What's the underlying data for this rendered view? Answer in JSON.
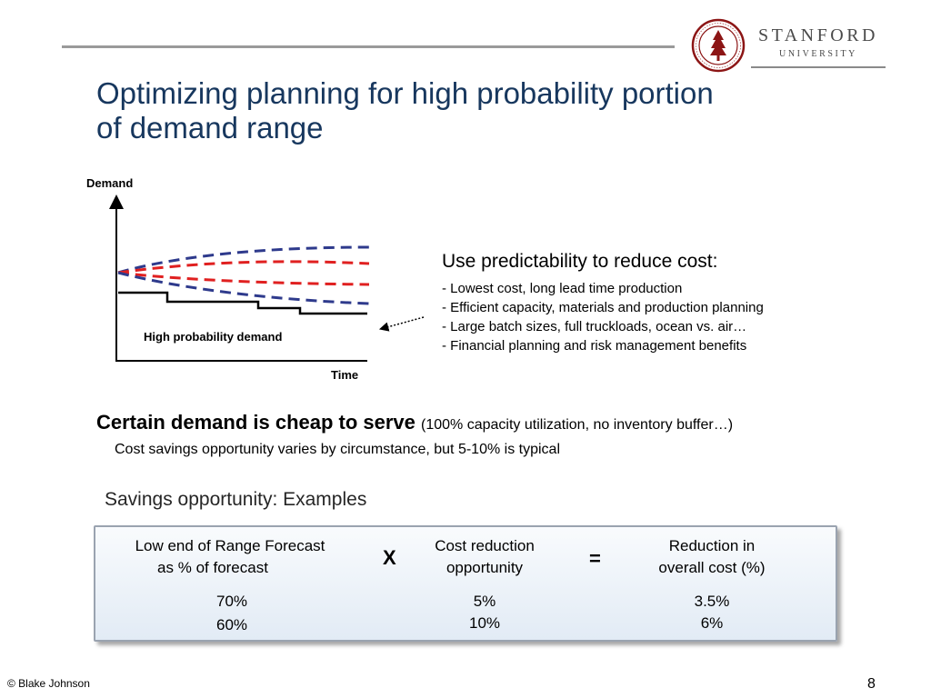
{
  "header": {
    "brand_name": "STANFORD",
    "brand_sub": "UNIVERSITY",
    "accent_color": "#8c1515",
    "title_color": "#17375e"
  },
  "title_line1": "Optimizing planning for high probability portion",
  "title_line2": "of demand range",
  "diagram": {
    "y_label": "Demand",
    "x_label": "Time",
    "band_label": "High probability demand"
  },
  "use": {
    "heading": "Use predictability to reduce cost:",
    "items": [
      "- Lowest cost, long lead time production",
      "- Efficient capacity, materials and production planning",
      "- Large batch sizes, full truckloads, ocean vs. air…",
      "- Financial planning and risk management benefits"
    ]
  },
  "certain": {
    "strong": "Certain demand is cheap to serve",
    "paren": "(100% capacity utilization, no inventory buffer…)",
    "note": "Cost savings opportunity varies by circumstance, but 5-10% is typical"
  },
  "examples": {
    "title": "Savings opportunity: Examples",
    "col1_header_line1": "Low end of Range Forecast",
    "col1_header_line2": "as % of forecast",
    "op_multiply": "X",
    "col2_header_line1": "Cost reduction",
    "col2_header_line2": "opportunity",
    "op_equals": "=",
    "col3_header_line1": "Reduction in",
    "col3_header_line2": "overall cost (%)",
    "rows": [
      {
        "low_end": "70%",
        "cost_reduction": "5%",
        "overall": "3.5%"
      },
      {
        "low_end": "60%",
        "cost_reduction": "10%",
        "overall": "6%"
      }
    ]
  },
  "footer": {
    "copyright": "© Blake Johnson",
    "page": "8"
  }
}
